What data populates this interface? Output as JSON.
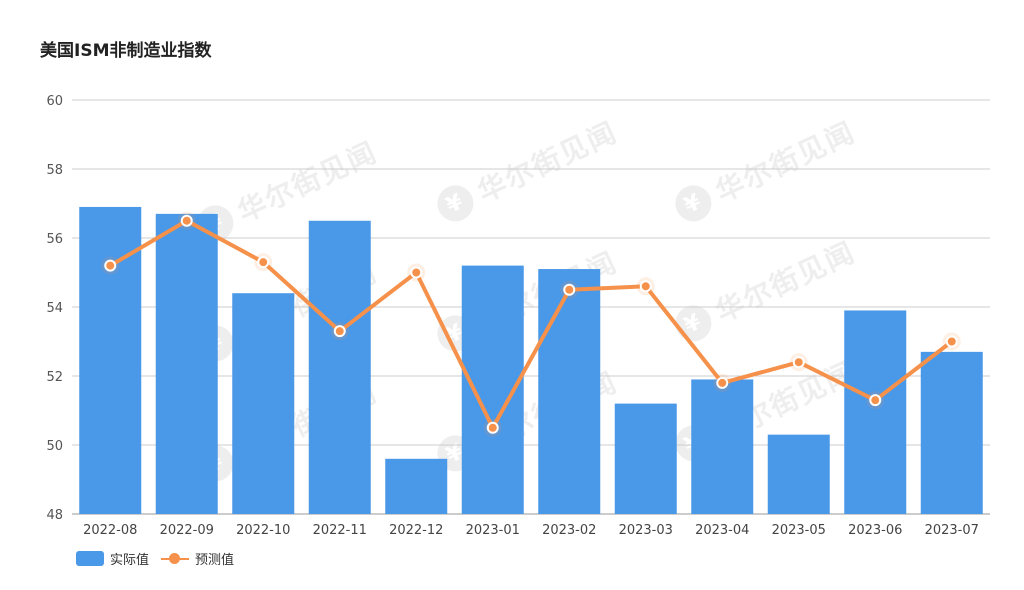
{
  "watermark_text": "华尔街见闻",
  "watermark_logo": "¥",
  "chart_data": {
    "type": "bar",
    "title": "美国ISM非制造业指数",
    "categories": [
      "2022-08",
      "2022-09",
      "2022-10",
      "2022-11",
      "2022-12",
      "2023-01",
      "2023-02",
      "2023-03",
      "2023-04",
      "2023-05",
      "2023-06",
      "2023-07"
    ],
    "series": [
      {
        "name": "实际值",
        "type": "bar",
        "color": "#4a98e8",
        "values": [
          56.9,
          56.7,
          54.4,
          56.5,
          49.6,
          55.2,
          55.1,
          51.2,
          51.9,
          50.3,
          53.9,
          52.7
        ]
      },
      {
        "name": "预测值",
        "type": "line",
        "color": "#f5914a",
        "values": [
          55.2,
          56.5,
          55.3,
          53.3,
          55.0,
          50.5,
          54.5,
          54.6,
          51.8,
          52.4,
          51.3,
          53.0
        ]
      }
    ],
    "y_ticks": [
      48,
      50,
      52,
      54,
      56,
      58,
      60
    ],
    "ylim": [
      48,
      60
    ],
    "grid": true,
    "legend_position": "bottom-left"
  }
}
